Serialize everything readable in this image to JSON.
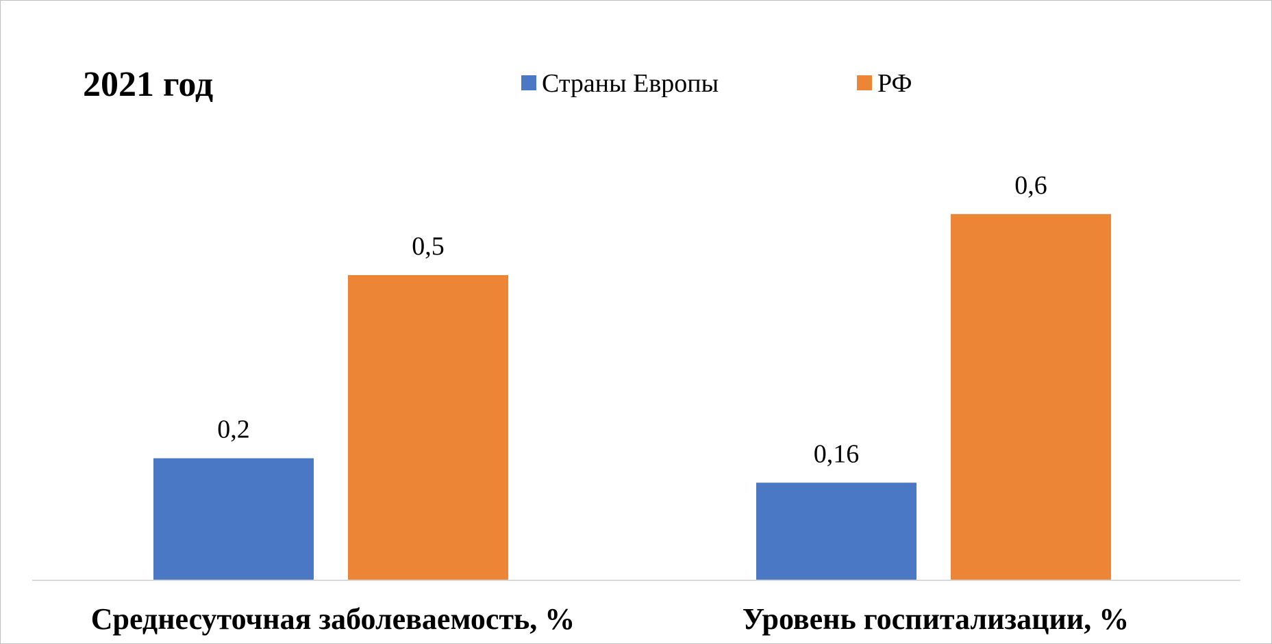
{
  "chart_data": {
    "type": "bar",
    "title": "2021 год",
    "categories": [
      "Среднесуточная заболеваемость, %",
      "Уровень госпитализации, %"
    ],
    "series": [
      {
        "name": "Страны Европы",
        "color": "#4a78c4",
        "values": [
          0.2,
          0.16
        ],
        "labels": [
          "0,2",
          "0,16"
        ]
      },
      {
        "name": "РФ",
        "color": "#ed8537",
        "values": [
          0.5,
          0.6
        ],
        "labels": [
          "0,5",
          "0,6"
        ]
      }
    ],
    "ylim": [
      0,
      0.7
    ],
    "grid": false,
    "legend": "top-center",
    "axis_color": "#d9d9d9"
  }
}
